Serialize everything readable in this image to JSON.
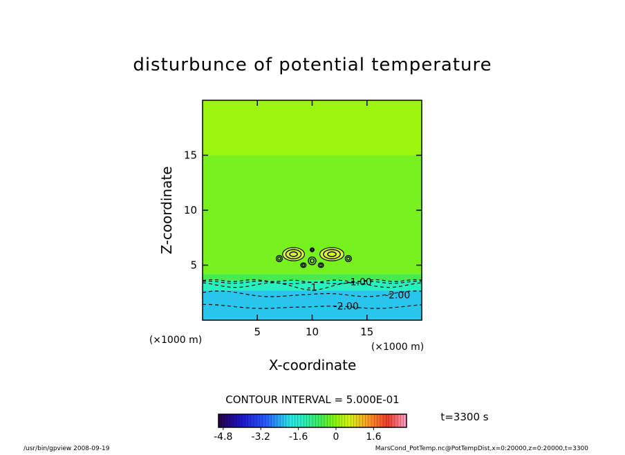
{
  "chart_data": {
    "type": "heatmap",
    "title": "disturbunce of potential temperature",
    "xlabel": "X-coordinate",
    "ylabel": "Z-coordinate",
    "xunit": "(×1000 m)",
    "yunit": "(×1000 m)",
    "xlim": [
      0,
      20
    ],
    "ylim": [
      0,
      20
    ],
    "xticks": [
      5,
      10,
      15
    ],
    "yticks": [
      5,
      10,
      15
    ],
    "xtick_labels": [
      "5",
      "10",
      "15"
    ],
    "ytick_labels": [
      "5",
      "10",
      "15"
    ],
    "contour_interval_text": "CONTOUR INTERVAL = 5.000E-01",
    "contour_labels": [
      {
        "text": "-1.00",
        "x": 14.3,
        "y": 3.5
      },
      {
        "text": "-2.00",
        "x": 17.8,
        "y": 2.3
      },
      {
        "text": "-2.00",
        "x": 13.1,
        "y": 1.3
      },
      {
        "text": "-1",
        "x": 10.0,
        "y": 3.0
      }
    ],
    "field_bands": [
      {
        "zmin": 0.0,
        "zmax": 2.7,
        "value": -2.2
      },
      {
        "zmin": 2.7,
        "zmax": 3.6,
        "value": -1.4
      },
      {
        "zmin": 3.6,
        "zmax": 4.2,
        "value": -0.6
      },
      {
        "zmin": 4.2,
        "zmax": 15.0,
        "value": -0.2
      },
      {
        "zmin": 15.0,
        "zmax": 20.0,
        "value": 0.1
      }
    ],
    "colorbar": {
      "min": -5.0,
      "max": 3.0,
      "tick_values": [
        -4.8,
        -3.2,
        -1.6,
        0,
        1.6
      ],
      "tick_labels": [
        "-4.8",
        "-3.2",
        "-1.6",
        "0",
        "1.6"
      ]
    },
    "time_text": "t=3300 s",
    "footer_left": "/usr/bin/gpview   2008-09-19",
    "footer_right": "MarsCond_PotTemp.nc@PotTempDist,x=0:20000,z=0:20000,t=3300"
  }
}
